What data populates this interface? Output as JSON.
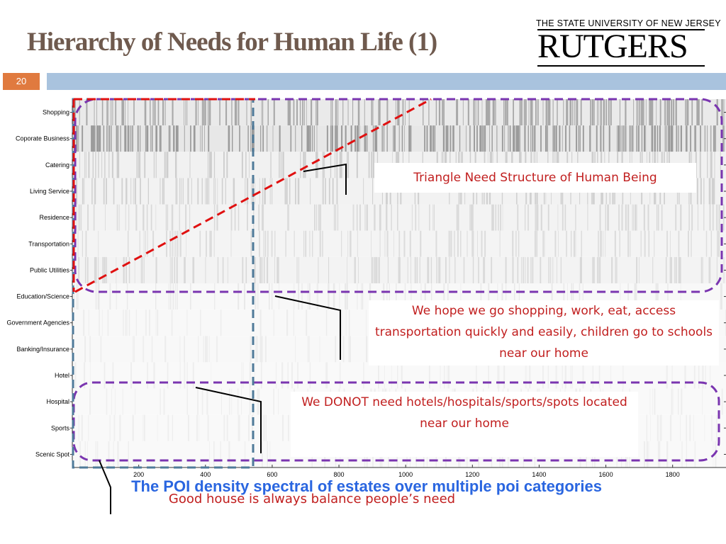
{
  "slide": {
    "title": "Hierarchy of Needs for Human Life  (1)",
    "number": "20",
    "logo_top": "THE STATE UNIVERSITY OF NEW JERSEY",
    "logo_main": "RUTGERS"
  },
  "callouts": {
    "triangle": "Triangle Need Structure of Human Being",
    "hope": "We hope we go shopping, work, eat, access transportation quickly and easily, children go to schools near our home",
    "donot": "We DONOT need hotels/hospitals/sports/spots located near our home"
  },
  "caption": "The POI density spectral of estates over multiple poi categories",
  "footer": "Good house is always balance people’s need",
  "colors": {
    "title": "#6f5a4e",
    "slide_number_bg": "#e07a3f",
    "header_bar": "#a9c3de",
    "callout_text": "#c11f1f",
    "caption": "#2a66e0",
    "purple_box": "#7a35b0",
    "red_dash": "#e01010",
    "blue_dash": "#4f7a99"
  },
  "chart_data": {
    "type": "heatmap",
    "categories": [
      "Shopping",
      "Coporate Business",
      "Catering",
      "Living Service",
      "Residence",
      "Transportation",
      "Public Utilities",
      "Education/Science",
      "Government Agencies",
      "Banking/Insurance",
      "Hotel",
      "Hospital",
      "Sports",
      "Scenic Spot"
    ],
    "x_ticks": [
      200,
      400,
      600,
      800,
      1000,
      1200,
      1400,
      1600,
      1800
    ],
    "xlim": [
      1,
      1960
    ],
    "relative_density": [
      0.55,
      0.62,
      0.3,
      0.28,
      0.22,
      0.2,
      0.22,
      0.08,
      0.06,
      0.06,
      0.04,
      0.05,
      0.05,
      0.05
    ],
    "grid": false,
    "legend": "none"
  }
}
